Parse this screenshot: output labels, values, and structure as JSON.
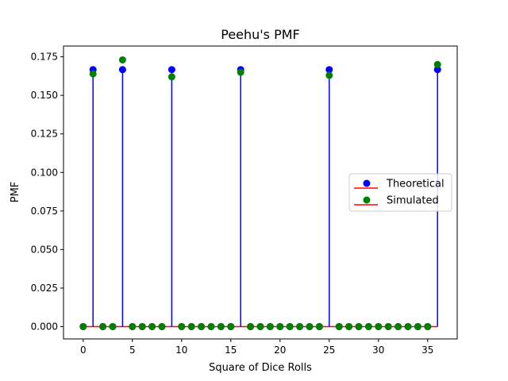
{
  "chart_data": {
    "type": "stem",
    "title": "Peehu's PMF",
    "xlabel": "Square of Dice Rolls",
    "ylabel": "PMF",
    "xlim": [
      -2,
      38
    ],
    "ylim": [
      -0.008,
      0.182
    ],
    "xticks": [
      0,
      5,
      10,
      15,
      20,
      25,
      30,
      35
    ],
    "yticks": [
      0.0,
      0.025,
      0.05,
      0.075,
      0.1,
      0.125,
      0.15,
      0.175
    ],
    "ytick_labels": [
      "0.000",
      "0.025",
      "0.050",
      "0.075",
      "0.100",
      "0.125",
      "0.150",
      "0.175"
    ],
    "x": [
      0,
      1,
      2,
      3,
      4,
      5,
      6,
      7,
      8,
      9,
      10,
      11,
      12,
      13,
      14,
      15,
      16,
      17,
      18,
      19,
      20,
      21,
      22,
      23,
      24,
      25,
      26,
      27,
      28,
      29,
      30,
      31,
      32,
      33,
      34,
      35,
      36
    ],
    "series": [
      {
        "name": "Theoretical",
        "color": "#0000ff",
        "marker_color": "#0000ff",
        "stem_color": "#0000ff",
        "values": [
          0,
          0.1667,
          0,
          0,
          0.1667,
          0,
          0,
          0,
          0,
          0.1667,
          0,
          0,
          0,
          0,
          0,
          0,
          0.1667,
          0,
          0,
          0,
          0,
          0,
          0,
          0,
          0,
          0.1667,
          0,
          0,
          0,
          0,
          0,
          0,
          0,
          0,
          0,
          0,
          0.1667
        ]
      },
      {
        "name": "Simulated",
        "color": "#008000",
        "marker_color": "#008000",
        "values": [
          0,
          0.164,
          0,
          0,
          0.173,
          0,
          0,
          0,
          0,
          0.162,
          0,
          0,
          0,
          0,
          0,
          0,
          0.165,
          0,
          0,
          0,
          0,
          0,
          0,
          0,
          0,
          0.163,
          0,
          0,
          0,
          0,
          0,
          0,
          0,
          0,
          0,
          0,
          0.17
        ]
      }
    ],
    "baseline_color": "#ff0000",
    "legend": {
      "placement": "center-right",
      "entries": [
        {
          "label": "Theoretical",
          "kind": "marker",
          "color": "#0000ff"
        },
        {
          "label": "Simulated",
          "kind": "marker",
          "color": "#008000"
        },
        {
          "label": "Simulated",
          "kind": "line",
          "color": "#ff0000"
        }
      ]
    },
    "grid": false
  }
}
